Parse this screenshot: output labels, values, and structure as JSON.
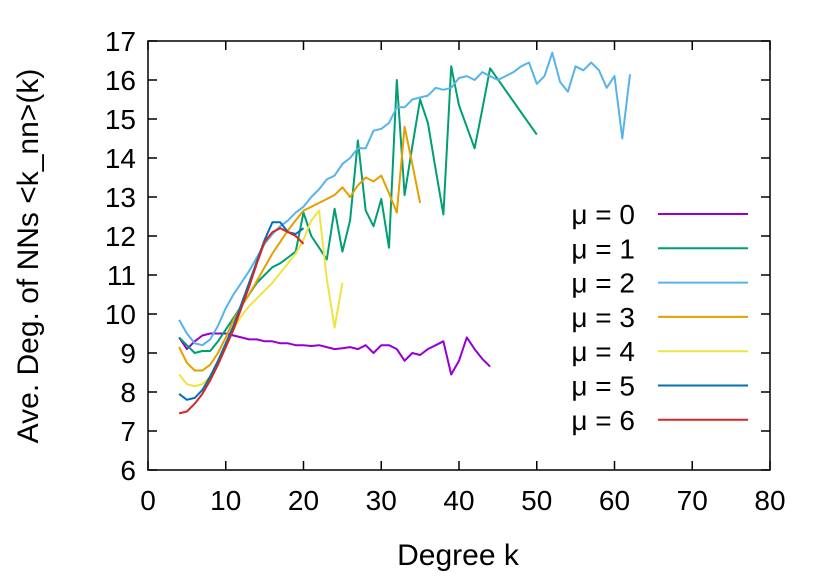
{
  "chart_data": {
    "type": "line",
    "xlabel": "Degree k",
    "ylabel": "Ave. Deg. of NNs <k_nn>(k)",
    "xlim": [
      0,
      80
    ],
    "ylim": [
      6,
      17
    ],
    "xticks": [
      0,
      10,
      20,
      30,
      40,
      50,
      60,
      70,
      80
    ],
    "yticks": [
      6,
      7,
      8,
      9,
      10,
      11,
      12,
      13,
      14,
      15,
      16,
      17
    ],
    "grid": false,
    "legend_position": "right",
    "series": [
      {
        "name": "μ = 0",
        "color": "#9400d3",
        "x": [
          4,
          5,
          6,
          7,
          8,
          9,
          10,
          11,
          12,
          13,
          14,
          15,
          16,
          17,
          18,
          19,
          20,
          21,
          22,
          23,
          24,
          25,
          26,
          27,
          28,
          29,
          30,
          31,
          32,
          33,
          34,
          35,
          36,
          37,
          38,
          39,
          40,
          41,
          42,
          43,
          44
        ],
        "y": [
          9.4,
          9.1,
          9.3,
          9.45,
          9.5,
          9.5,
          9.5,
          9.45,
          9.4,
          9.35,
          9.35,
          9.3,
          9.3,
          9.25,
          9.25,
          9.2,
          9.2,
          9.18,
          9.2,
          9.15,
          9.1,
          9.12,
          9.15,
          9.1,
          9.2,
          9.0,
          9.2,
          9.2,
          9.1,
          8.8,
          9.0,
          8.95,
          9.1,
          9.2,
          9.3,
          8.45,
          8.8,
          9.4,
          9.1,
          8.85,
          8.65
        ]
      },
      {
        "name": "μ = 1",
        "color": "#009e73",
        "x": [
          4,
          5,
          6,
          7,
          8,
          9,
          10,
          11,
          12,
          13,
          14,
          15,
          16,
          17,
          18,
          19,
          20,
          21,
          22,
          23,
          24,
          25,
          26,
          27,
          28,
          29,
          30,
          31,
          32,
          33,
          34,
          35,
          36,
          37,
          38,
          39,
          40,
          41,
          42,
          43,
          44,
          50
        ],
        "y": [
          9.4,
          9.2,
          9.0,
          9.05,
          9.05,
          9.3,
          9.6,
          9.9,
          10.2,
          10.5,
          10.8,
          11.0,
          11.2,
          11.3,
          11.45,
          11.6,
          12.6,
          12.0,
          11.7,
          11.4,
          12.7,
          11.6,
          12.4,
          14.45,
          12.65,
          12.25,
          12.95,
          11.7,
          16.0,
          13.05,
          14.3,
          15.5,
          14.9,
          13.7,
          12.55,
          16.35,
          15.35,
          14.8,
          14.25,
          15.25,
          16.3,
          14.6
        ]
      },
      {
        "name": "μ = 2",
        "color": "#56b4e9",
        "x": [
          4,
          5,
          6,
          7,
          8,
          9,
          10,
          11,
          12,
          13,
          14,
          15,
          16,
          17,
          18,
          19,
          20,
          21,
          22,
          23,
          24,
          25,
          26,
          27,
          28,
          29,
          30,
          31,
          32,
          33,
          34,
          35,
          36,
          37,
          38,
          39,
          40,
          41,
          42,
          43,
          44,
          45,
          46,
          47,
          48,
          49,
          50,
          51,
          52,
          53,
          54,
          55,
          56,
          57,
          58,
          59,
          60,
          61,
          62
        ],
        "y": [
          9.85,
          9.5,
          9.25,
          9.2,
          9.35,
          9.7,
          10.15,
          10.5,
          10.8,
          11.1,
          11.45,
          11.8,
          12.05,
          12.25,
          12.4,
          12.6,
          12.75,
          13.0,
          13.2,
          13.45,
          13.55,
          13.85,
          14.0,
          14.25,
          14.25,
          14.7,
          14.75,
          14.9,
          15.3,
          15.3,
          15.5,
          15.55,
          15.6,
          15.8,
          15.75,
          15.8,
          16.05,
          16.1,
          16.0,
          16.2,
          16.1,
          16.0,
          16.1,
          16.2,
          16.35,
          16.45,
          15.9,
          16.1,
          16.7,
          15.95,
          15.7,
          16.35,
          16.25,
          16.45,
          16.25,
          15.8,
          16.1,
          14.5,
          16.15
        ]
      },
      {
        "name": "μ = 3",
        "color": "#e69f00",
        "x": [
          4,
          5,
          6,
          7,
          8,
          9,
          10,
          11,
          12,
          13,
          14,
          15,
          16,
          17,
          18,
          19,
          20,
          21,
          22,
          23,
          24,
          25,
          26,
          27,
          28,
          29,
          30,
          31,
          32,
          33,
          34,
          35
        ],
        "y": [
          9.15,
          8.75,
          8.55,
          8.55,
          8.7,
          9.0,
          9.4,
          9.85,
          10.2,
          10.5,
          10.85,
          11.2,
          11.55,
          11.85,
          12.15,
          12.4,
          12.65,
          12.75,
          12.85,
          12.95,
          13.05,
          13.25,
          13.0,
          13.3,
          13.5,
          13.4,
          13.55,
          13.1,
          12.6,
          14.8,
          13.85,
          12.85
        ]
      },
      {
        "name": "μ = 4",
        "color": "#f0e442",
        "x": [
          4,
          5,
          6,
          7,
          8,
          9,
          10,
          11,
          12,
          13,
          14,
          15,
          16,
          17,
          18,
          19,
          20,
          21,
          22,
          23,
          24,
          25
        ],
        "y": [
          8.45,
          8.2,
          8.15,
          8.2,
          8.4,
          8.75,
          9.2,
          9.6,
          9.95,
          10.2,
          10.4,
          10.6,
          10.8,
          11.05,
          11.3,
          11.55,
          11.9,
          12.4,
          12.65,
          10.9,
          9.65,
          10.8
        ]
      },
      {
        "name": "μ = 5",
        "color": "#0072b2",
        "x": [
          4,
          5,
          6,
          7,
          8,
          9,
          10,
          11,
          12,
          13,
          14,
          15,
          16,
          17,
          18,
          19,
          20
        ],
        "y": [
          7.95,
          7.8,
          7.85,
          8.05,
          8.4,
          8.8,
          9.25,
          9.7,
          10.25,
          10.8,
          11.35,
          11.9,
          12.35,
          12.35,
          12.1,
          12.05,
          12.2
        ]
      },
      {
        "name": "μ = 6",
        "color": "#d62728",
        "x": [
          4,
          5,
          6,
          7,
          8,
          9,
          10,
          11,
          12,
          13,
          14,
          15,
          16,
          17,
          18,
          19,
          20
        ],
        "y": [
          7.45,
          7.5,
          7.7,
          7.95,
          8.3,
          8.7,
          9.15,
          9.6,
          10.15,
          10.7,
          11.3,
          11.85,
          12.1,
          12.2,
          12.1,
          12.0,
          11.8
        ]
      }
    ]
  }
}
